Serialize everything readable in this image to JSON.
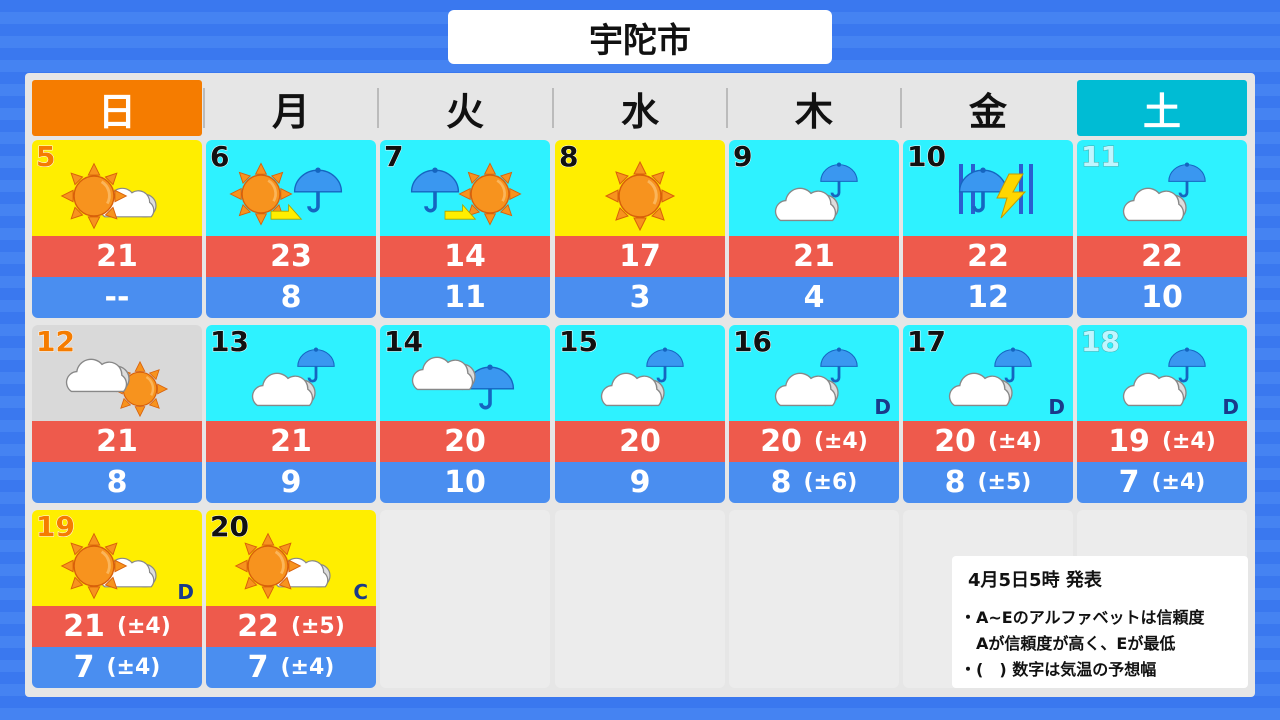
{
  "title": "宇陀市",
  "weekdays": [
    "日",
    "月",
    "火",
    "水",
    "木",
    "金",
    "土"
  ],
  "colors": {
    "sunday": "#f57c00",
    "saturday": "#00bcd4",
    "sunny_bg": "#ffee00",
    "rain_bg": "#2ef2ff",
    "cloudy_bg": "#d9d9d9",
    "high": "#ee5a4c",
    "low": "#4a8ef0"
  },
  "days": [
    {
      "day": "5",
      "weather": "sunny-then-cloudy",
      "bg": "sunny",
      "high": "21",
      "low": "--"
    },
    {
      "day": "6",
      "weather": "sunny-then-rain",
      "bg": "rain",
      "high": "23",
      "low": "8"
    },
    {
      "day": "7",
      "weather": "rain-then-sunny",
      "bg": "rain",
      "high": "14",
      "low": "11"
    },
    {
      "day": "8",
      "weather": "sunny",
      "bg": "sunny",
      "high": "17",
      "low": "3"
    },
    {
      "day": "9",
      "weather": "cloudy-with-rain",
      "bg": "rain",
      "high": "21",
      "low": "4"
    },
    {
      "day": "10",
      "weather": "heavy-rain-thunder",
      "bg": "rain",
      "high": "22",
      "low": "12"
    },
    {
      "day": "11",
      "weather": "cloudy-with-rain",
      "bg": "rain",
      "high": "22",
      "low": "10"
    },
    {
      "day": "12",
      "weather": "cloudy-with-sun",
      "bg": "cloudy",
      "high": "21",
      "low": "8"
    },
    {
      "day": "13",
      "weather": "cloudy-with-rain",
      "bg": "rain",
      "high": "21",
      "low": "9"
    },
    {
      "day": "14",
      "weather": "cloudy-then-rain",
      "bg": "rain",
      "high": "20",
      "low": "10"
    },
    {
      "day": "15",
      "weather": "cloudy-with-rain",
      "bg": "rain",
      "high": "20",
      "low": "9"
    },
    {
      "day": "16",
      "weather": "cloudy-with-rain",
      "bg": "rain",
      "high": "20",
      "high_range": "(±4)",
      "low": "8",
      "low_range": "(±6)",
      "reliability": "D"
    },
    {
      "day": "17",
      "weather": "cloudy-with-rain",
      "bg": "rain",
      "high": "20",
      "high_range": "(±4)",
      "low": "8",
      "low_range": "(±5)",
      "reliability": "D"
    },
    {
      "day": "18",
      "weather": "cloudy-with-rain",
      "bg": "rain",
      "high": "19",
      "high_range": "(±4)",
      "low": "7",
      "low_range": "(±4)",
      "reliability": "D"
    },
    {
      "day": "19",
      "weather": "sunny-with-cloud",
      "bg": "sunny",
      "high": "21",
      "high_range": "(±4)",
      "low": "7",
      "low_range": "(±4)",
      "reliability": "D"
    },
    {
      "day": "20",
      "weather": "sunny-with-cloud",
      "bg": "sunny",
      "high": "22",
      "high_range": "(±5)",
      "low": "7",
      "low_range": "(±4)",
      "reliability": "C"
    }
  ],
  "note": {
    "issued": "4月5日5時 発表",
    "lines": [
      "・A~Eのアルファベットは信頼度",
      "　Aが信頼度が高く、Eが最低",
      "・(　) 数字は気温の予想幅"
    ]
  }
}
